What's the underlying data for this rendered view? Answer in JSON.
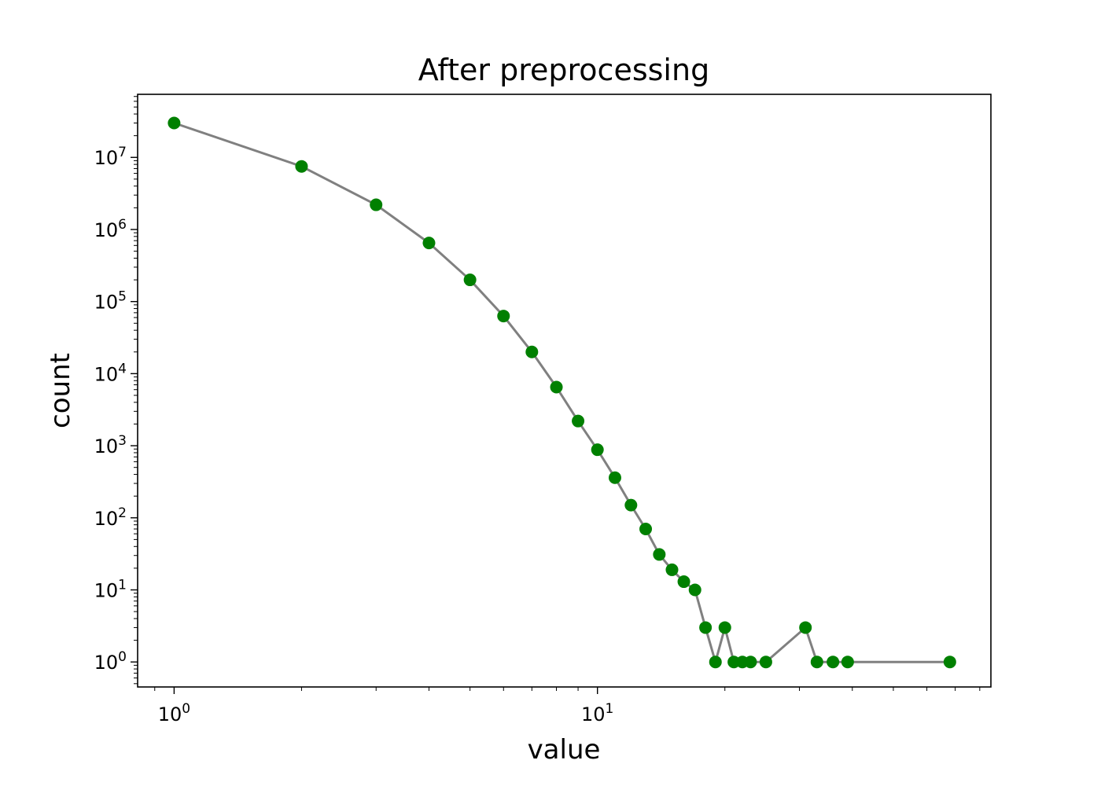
{
  "chart_data": {
    "type": "line",
    "title": "After preprocessing",
    "xlabel": "value",
    "ylabel": "count",
    "xscale": "log",
    "yscale": "log",
    "xlim": [
      0.82,
      85
    ],
    "ylim": [
      0.45,
      75000000
    ],
    "grid": false,
    "marker_color": "#008000",
    "line_color": "#808080",
    "x_ticks": [
      {
        "value": 1,
        "label_base": "10",
        "label_exp": "0"
      },
      {
        "value": 10,
        "label_base": "10",
        "label_exp": "1"
      }
    ],
    "y_ticks": [
      {
        "value": 1,
        "label_base": "10",
        "label_exp": "0"
      },
      {
        "value": 10,
        "label_base": "10",
        "label_exp": "1"
      },
      {
        "value": 100,
        "label_base": "10",
        "label_exp": "2"
      },
      {
        "value": 1000,
        "label_base": "10",
        "label_exp": "3"
      },
      {
        "value": 10000,
        "label_base": "10",
        "label_exp": "4"
      },
      {
        "value": 100000,
        "label_base": "10",
        "label_exp": "5"
      },
      {
        "value": 1000000,
        "label_base": "10",
        "label_exp": "6"
      },
      {
        "value": 10000000,
        "label_base": "10",
        "label_exp": "7"
      }
    ],
    "series": [
      {
        "x": [
          1,
          2,
          3,
          4,
          5,
          6,
          7,
          8,
          9,
          10,
          11,
          12,
          13,
          14,
          15,
          16,
          17,
          18,
          19,
          20,
          21,
          22,
          23,
          25,
          31,
          33,
          36,
          39,
          68
        ],
        "y": [
          30000000,
          7500000,
          2200000,
          650000,
          200000,
          63000,
          20000,
          6500,
          2200,
          880,
          360,
          150,
          70,
          31,
          19,
          13,
          10,
          3,
          1,
          3,
          1,
          1,
          1,
          1,
          3,
          1,
          1,
          1,
          1
        ]
      }
    ]
  }
}
